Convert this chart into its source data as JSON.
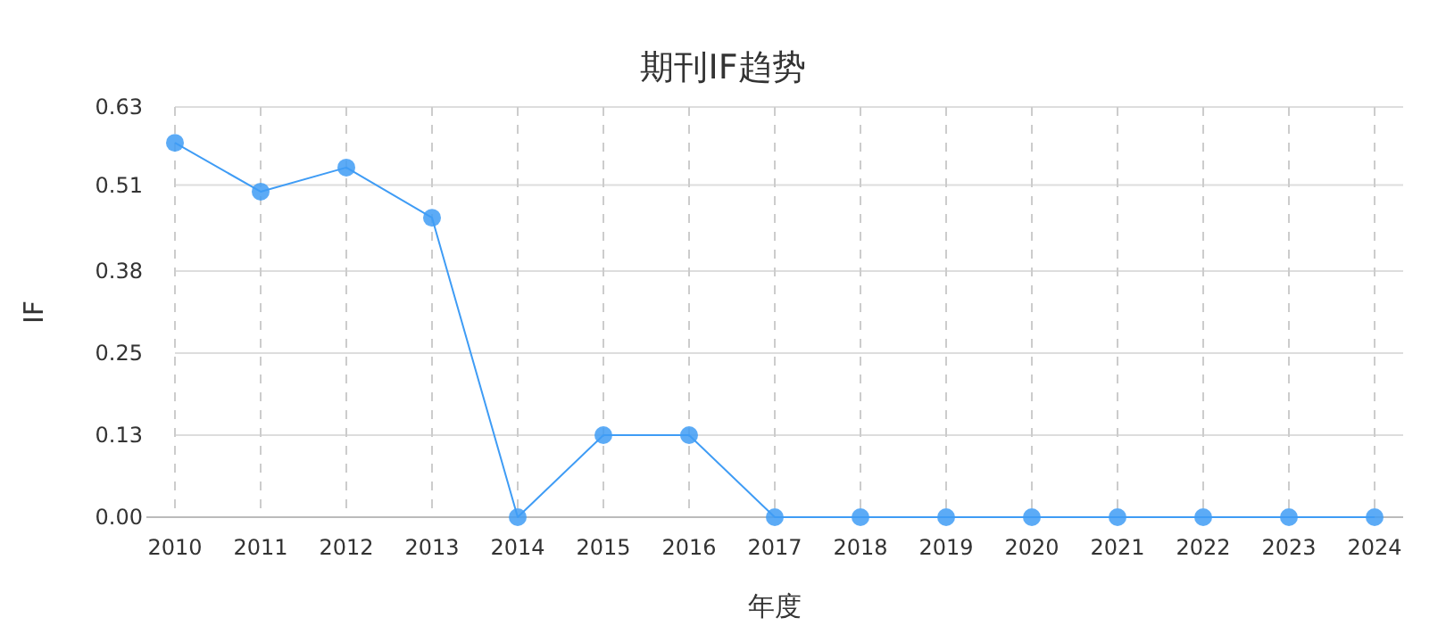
{
  "chart_data": {
    "type": "line",
    "title": "期刊IF趋势",
    "xlabel": "年度",
    "ylabel": "IF",
    "categories": [
      "2010",
      "2011",
      "2012",
      "2013",
      "2014",
      "2015",
      "2016",
      "2017",
      "2018",
      "2019",
      "2020",
      "2021",
      "2022",
      "2023",
      "2024"
    ],
    "series": [
      {
        "color": "#3f9cf5",
        "values": [
          0.575,
          0.5,
          0.537,
          0.46,
          0,
          0.126,
          0.126,
          0,
          0,
          0,
          0,
          0,
          0,
          0,
          0
        ]
      }
    ],
    "ylim": [
      0,
      0.63
    ],
    "yticks": [
      {
        "value": 0,
        "label": "0.00"
      },
      {
        "value": 0.126,
        "label": "0.13"
      },
      {
        "value": 0.252,
        "label": "0.25"
      },
      {
        "value": 0.378,
        "label": "0.38"
      },
      {
        "value": 0.51,
        "label": "0.51"
      },
      {
        "value": 0.63,
        "label": "0.63"
      }
    ],
    "grid": true,
    "marker": "circle",
    "line_style": "solid"
  }
}
